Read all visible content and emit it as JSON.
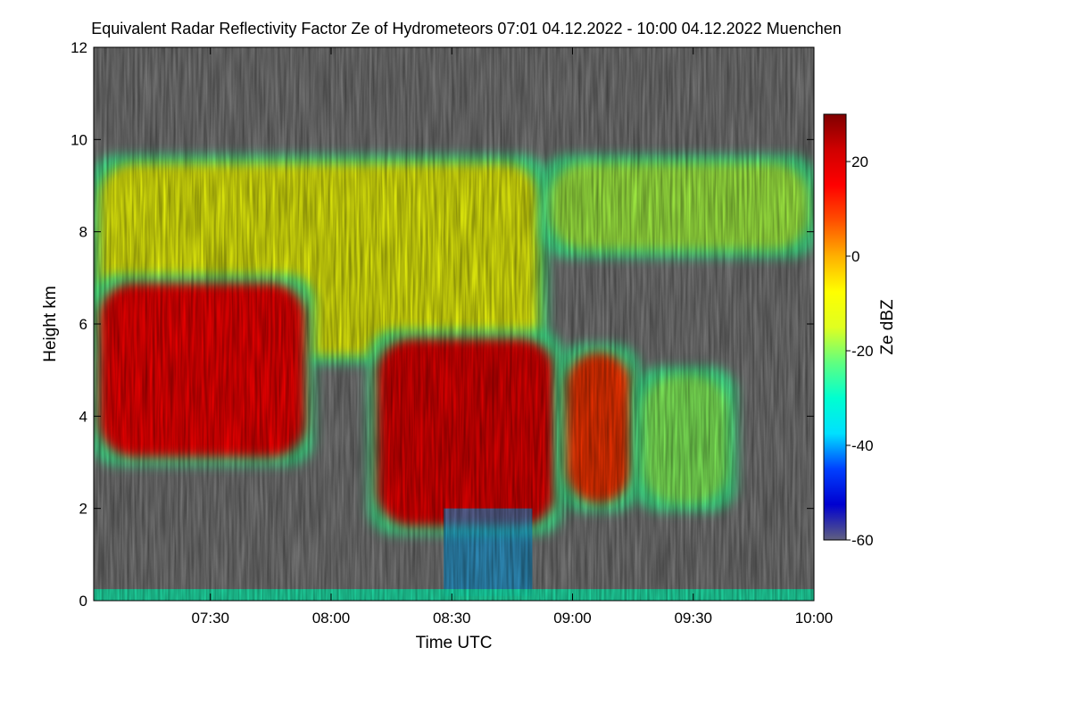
{
  "chart_data": {
    "type": "heatmap",
    "title": "Equivalent Radar Reflectivity Factor Ze of Hydrometeors   07:01 04.12.2022 - 10:00 04.12.2022 Muenchen",
    "xlabel": "Time UTC",
    "ylabel": "Height km",
    "colorbar_label": "Ze dBZ",
    "x_range_minutes_utc": [
      421,
      600
    ],
    "x_ticks": [
      {
        "label": "07:30",
        "value": 450
      },
      {
        "label": "08:00",
        "value": 480
      },
      {
        "label": "08:30",
        "value": 510
      },
      {
        "label": "09:00",
        "value": 540
      },
      {
        "label": "09:30",
        "value": 570
      },
      {
        "label": "10:00",
        "value": 600
      }
    ],
    "ylim": [
      0,
      12
    ],
    "y_ticks": [
      0,
      2,
      4,
      6,
      8,
      10,
      12
    ],
    "colorbar_range": [
      -60,
      30
    ],
    "colorbar_ticks": [
      20,
      0,
      -20,
      -40,
      -60
    ],
    "background_color": "#7f7f7f",
    "colormap": [
      "#606080",
      "#0000d0",
      "#0040ff",
      "#00e0ff",
      "#00ffd0",
      "#60ff80",
      "#e0ff20",
      "#ffff00",
      "#ffb000",
      "#ff5000",
      "#ff0000",
      "#d00000",
      "#800000"
    ],
    "cloud_regions": [
      {
        "name": "upper-cloud-west",
        "t_start": 421,
        "t_end": 533,
        "base_km": 5.2,
        "top_km": 9.6,
        "mean_dbz": -10
      },
      {
        "name": "upper-cloud-east",
        "t_start": 533,
        "t_end": 600,
        "base_km": 7.5,
        "top_km": 9.6,
        "mean_dbz": -18
      },
      {
        "name": "core-west",
        "t_start": 421,
        "t_end": 475,
        "base_km": 3.0,
        "top_km": 7.0,
        "mean_dbz": 15
      },
      {
        "name": "core-central",
        "t_start": 490,
        "t_end": 537,
        "base_km": 1.5,
        "top_km": 5.8,
        "mean_dbz": 18
      },
      {
        "name": "core-east",
        "t_start": 537,
        "t_end": 556,
        "base_km": 2.0,
        "top_km": 5.5,
        "mean_dbz": 10
      },
      {
        "name": "anvil-edge-east",
        "t_start": 556,
        "t_end": 580,
        "base_km": 2.0,
        "top_km": 5.0,
        "mean_dbz": -20
      },
      {
        "name": "precip-fall-streaks",
        "t_start": 508,
        "t_end": 530,
        "base_km": 0.1,
        "top_km": 2.0,
        "mean_dbz": -40
      },
      {
        "name": "ground-clutter",
        "t_start": 421,
        "t_end": 600,
        "base_km": 0.0,
        "top_km": 0.25,
        "mean_dbz": -28
      }
    ]
  }
}
